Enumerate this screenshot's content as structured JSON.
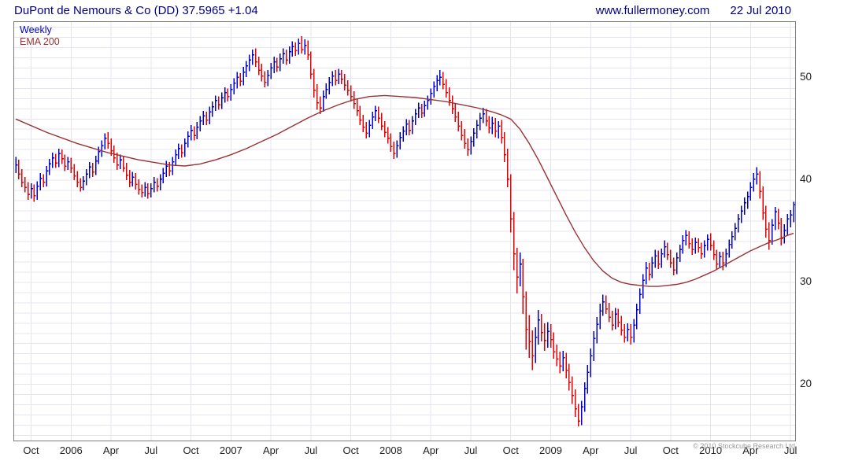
{
  "header": {
    "title": "DuPont de Nemours & Co (DD) 37.5965 +1.04",
    "site": "www.fullermoney.com",
    "date": "22 Jul 2010"
  },
  "legend": {
    "series1": "Weekly",
    "series2": "EMA 200"
  },
  "footer": {
    "copyright": "© 2010 Stockcube Research Ltd"
  },
  "colors": {
    "title": "#00007f",
    "up": "#0000cc",
    "down": "#e40000",
    "ema": "#993333",
    "grid": "#e8e3f0",
    "frame": "#7c7c7c",
    "axis_text": "#222222"
  },
  "chart_data": {
    "type": "bar",
    "subtype": "weekly-ohlc-hlc-bars",
    "title": "DuPont de Nemours & Co (DD)",
    "last_price": 37.5965,
    "change": "+1.04",
    "ylim": [
      14.5,
      55.5
    ],
    "y_ticks": [
      20,
      30,
      40,
      50
    ],
    "grid_step": 1,
    "legend_position": "top-left",
    "x_ticks": [
      {
        "label": "Oct",
        "week": 5
      },
      {
        "label": "2006",
        "week": 18
      },
      {
        "label": "Apr",
        "week": 31
      },
      {
        "label": "Jul",
        "week": 44
      },
      {
        "label": "Oct",
        "week": 57
      },
      {
        "label": "2007",
        "week": 70
      },
      {
        "label": "Apr",
        "week": 83
      },
      {
        "label": "Jul",
        "week": 96
      },
      {
        "label": "Oct",
        "week": 109
      },
      {
        "label": "2008",
        "week": 122
      },
      {
        "label": "Apr",
        "week": 135
      },
      {
        "label": "Jul",
        "week": 148
      },
      {
        "label": "Oct",
        "week": 161
      },
      {
        "label": "2009",
        "week": 174
      },
      {
        "label": "Apr",
        "week": 187
      },
      {
        "label": "Jul",
        "week": 200
      },
      {
        "label": "Oct",
        "week": 213
      },
      {
        "label": "2010",
        "week": 226
      },
      {
        "label": "Apr",
        "week": 239
      },
      {
        "label": "Jul",
        "week": 252
      }
    ],
    "bars": [
      [
        42.3,
        40.7,
        41.5
      ],
      [
        42.0,
        40.1,
        40.6
      ],
      [
        41.1,
        39.3,
        39.8
      ],
      [
        40.3,
        38.8,
        39.3
      ],
      [
        39.8,
        38.1,
        38.6
      ],
      [
        39.7,
        38.2,
        39.2
      ],
      [
        39.6,
        37.9,
        38.5
      ],
      [
        39.9,
        38.1,
        39.4
      ],
      [
        40.7,
        39.0,
        40.2
      ],
      [
        40.6,
        39.3,
        39.8
      ],
      [
        41.4,
        39.4,
        40.9
      ],
      [
        42.1,
        40.5,
        41.6
      ],
      [
        42.7,
        41.2,
        42.2
      ],
      [
        42.6,
        41.2,
        41.7
      ],
      [
        43.1,
        41.3,
        42.6
      ],
      [
        43.0,
        41.6,
        42.1
      ],
      [
        42.5,
        40.9,
        41.4
      ],
      [
        42.3,
        41.0,
        41.8
      ],
      [
        42.2,
        40.7,
        41.2
      ],
      [
        41.6,
        40.0,
        40.4
      ],
      [
        40.9,
        39.3,
        39.8
      ],
      [
        40.2,
        38.9,
        39.3
      ],
      [
        40.4,
        39.0,
        39.9
      ],
      [
        41.1,
        39.5,
        40.6
      ],
      [
        41.8,
        40.2,
        41.3
      ],
      [
        41.7,
        40.3,
        40.8
      ],
      [
        42.4,
        40.5,
        41.9
      ],
      [
        43.3,
        41.6,
        42.8
      ],
      [
        43.9,
        42.3,
        43.4
      ],
      [
        44.6,
        43.0,
        44.1
      ],
      [
        44.7,
        43.1,
        43.6
      ],
      [
        44.1,
        42.4,
        42.9
      ],
      [
        43.4,
        41.7,
        42.2
      ],
      [
        42.7,
        41.0,
        41.5
      ],
      [
        42.5,
        41.1,
        42.0
      ],
      [
        42.4,
        40.8,
        41.2
      ],
      [
        41.7,
        40.0,
        40.5
      ],
      [
        41.0,
        39.3,
        39.8
      ],
      [
        40.8,
        39.4,
        40.3
      ],
      [
        40.7,
        39.1,
        39.6
      ],
      [
        40.1,
        38.6,
        39.1
      ],
      [
        39.6,
        38.3,
        38.8
      ],
      [
        39.8,
        38.4,
        39.3
      ],
      [
        39.7,
        38.2,
        38.7
      ],
      [
        39.7,
        38.3,
        39.2
      ],
      [
        40.3,
        38.8,
        39.8
      ],
      [
        40.2,
        38.9,
        39.4
      ],
      [
        40.6,
        39.0,
        40.1
      ],
      [
        41.2,
        39.7,
        40.7
      ],
      [
        41.9,
        40.3,
        41.4
      ],
      [
        41.8,
        40.4,
        40.9
      ],
      [
        42.3,
        40.5,
        41.8
      ],
      [
        43.0,
        41.4,
        42.5
      ],
      [
        43.6,
        42.1,
        43.1
      ],
      [
        43.5,
        42.2,
        42.7
      ],
      [
        44.1,
        42.3,
        43.6
      ],
      [
        44.8,
        43.2,
        44.3
      ],
      [
        45.4,
        43.9,
        44.9
      ],
      [
        45.3,
        43.9,
        44.4
      ],
      [
        45.7,
        44.0,
        45.2
      ],
      [
        46.3,
        44.8,
        45.8
      ],
      [
        46.8,
        45.4,
        46.3
      ],
      [
        46.7,
        45.4,
        45.9
      ],
      [
        47.2,
        45.5,
        46.7
      ],
      [
        47.7,
        46.2,
        47.2
      ],
      [
        48.3,
        46.8,
        47.8
      ],
      [
        48.2,
        46.9,
        47.4
      ],
      [
        48.6,
        47.0,
        48.1
      ],
      [
        49.1,
        47.6,
        48.6
      ],
      [
        49.0,
        47.7,
        48.2
      ],
      [
        49.4,
        47.8,
        48.9
      ],
      [
        50.0,
        48.4,
        49.5
      ],
      [
        50.6,
        49.0,
        50.1
      ],
      [
        50.5,
        49.2,
        49.7
      ],
      [
        51.1,
        49.3,
        50.6
      ],
      [
        51.7,
        50.1,
        51.2
      ],
      [
        52.3,
        50.7,
        51.8
      ],
      [
        52.8,
        51.3,
        52.3
      ],
      [
        52.9,
        51.1,
        51.6
      ],
      [
        52.1,
        50.3,
        50.8
      ],
      [
        51.4,
        49.7,
        50.2
      ],
      [
        50.7,
        49.1,
        49.6
      ],
      [
        50.8,
        49.2,
        50.3
      ],
      [
        51.5,
        49.9,
        51.0
      ],
      [
        52.1,
        50.5,
        51.6
      ],
      [
        52.0,
        50.6,
        51.1
      ],
      [
        52.4,
        50.7,
        51.9
      ],
      [
        52.9,
        51.4,
        52.4
      ],
      [
        52.8,
        51.3,
        51.8
      ],
      [
        53.1,
        51.4,
        52.6
      ],
      [
        53.6,
        52.1,
        53.1
      ],
      [
        53.5,
        52.2,
        52.7
      ],
      [
        53.9,
        52.3,
        53.4
      ],
      [
        54.1,
        52.4,
        52.8
      ],
      [
        53.8,
        52.3,
        53.2
      ],
      [
        53.7,
        51.8,
        52.3
      ],
      [
        52.6,
        49.9,
        50.4
      ],
      [
        50.9,
        48.1,
        48.8
      ],
      [
        49.4,
        46.9,
        47.6
      ],
      [
        48.2,
        46.5,
        47.1
      ],
      [
        48.8,
        46.7,
        48.2
      ],
      [
        49.5,
        48.0,
        48.9
      ],
      [
        50.1,
        48.4,
        49.6
      ],
      [
        50.7,
        49.2,
        50.2
      ],
      [
        50.8,
        49.3,
        49.8
      ],
      [
        50.9,
        49.4,
        50.4
      ],
      [
        50.8,
        49.4,
        49.9
      ],
      [
        50.4,
        48.8,
        49.3
      ],
      [
        49.8,
        48.3,
        48.8
      ],
      [
        49.3,
        47.7,
        48.2
      ],
      [
        48.7,
        47.0,
        47.5
      ],
      [
        48.0,
        46.3,
        46.8
      ],
      [
        47.3,
        45.4,
        45.9
      ],
      [
        46.4,
        44.7,
        45.2
      ],
      [
        45.7,
        44.1,
        44.6
      ],
      [
        45.9,
        44.2,
        45.4
      ],
      [
        46.7,
        45.0,
        46.2
      ],
      [
        47.3,
        45.8,
        46.8
      ],
      [
        47.2,
        45.6,
        46.1
      ],
      [
        46.6,
        44.9,
        45.3
      ],
      [
        45.8,
        44.2,
        44.7
      ],
      [
        45.2,
        43.6,
        44.1
      ],
      [
        44.6,
        42.8,
        43.3
      ],
      [
        43.8,
        42.1,
        42.6
      ],
      [
        43.9,
        42.2,
        43.4
      ],
      [
        44.7,
        43.0,
        44.2
      ],
      [
        45.3,
        43.8,
        44.8
      ],
      [
        46.0,
        44.4,
        45.5
      ],
      [
        45.9,
        44.4,
        44.9
      ],
      [
        46.3,
        44.5,
        45.8
      ],
      [
        47.0,
        45.4,
        46.5
      ],
      [
        47.6,
        46.1,
        47.1
      ],
      [
        47.5,
        46.1,
        46.6
      ],
      [
        47.8,
        46.2,
        47.3
      ],
      [
        48.3,
        46.9,
        47.8
      ],
      [
        49.0,
        47.4,
        48.5
      ],
      [
        49.7,
        48.1,
        49.2
      ],
      [
        50.3,
        48.7,
        49.8
      ],
      [
        50.8,
        49.3,
        50.1
      ],
      [
        50.6,
        48.9,
        49.4
      ],
      [
        49.9,
        48.1,
        48.6
      ],
      [
        49.1,
        47.3,
        47.8
      ],
      [
        48.3,
        46.5,
        47.0
      ],
      [
        47.5,
        45.7,
        46.2
      ],
      [
        46.7,
        44.8,
        45.3
      ],
      [
        45.8,
        43.9,
        44.4
      ],
      [
        45.0,
        43.1,
        43.6
      ],
      [
        44.1,
        42.4,
        43.0
      ],
      [
        44.3,
        42.5,
        43.8
      ],
      [
        45.1,
        43.3,
        44.6
      ],
      [
        45.9,
        44.1,
        45.4
      ],
      [
        46.6,
        44.9,
        46.1
      ],
      [
        47.1,
        45.6,
        46.5
      ],
      [
        47.0,
        45.3,
        45.8
      ],
      [
        46.3,
        44.6,
        45.1
      ],
      [
        46.2,
        44.5,
        45.6
      ],
      [
        46.1,
        44.2,
        44.8
      ],
      [
        45.8,
        44.1,
        45.3
      ],
      [
        45.9,
        43.6,
        44.2
      ],
      [
        44.7,
        41.8,
        42.5
      ],
      [
        43.1,
        39.3,
        40.1
      ],
      [
        40.6,
        34.9,
        36.2
      ],
      [
        36.9,
        31.2,
        32.8
      ],
      [
        33.4,
        28.9,
        30.5
      ],
      [
        32.9,
        29.6,
        31.8
      ],
      [
        32.3,
        26.9,
        28.6
      ],
      [
        29.1,
        23.4,
        25.4
      ],
      [
        26.8,
        22.6,
        24.2
      ],
      [
        25.3,
        21.4,
        22.8
      ],
      [
        25.6,
        22.1,
        24.6
      ],
      [
        27.3,
        23.9,
        26.3
      ],
      [
        26.9,
        24.2,
        25.1
      ],
      [
        26.0,
        23.3,
        24.3
      ],
      [
        26.1,
        23.6,
        25.2
      ],
      [
        25.9,
        23.6,
        24.4
      ],
      [
        25.1,
        22.5,
        23.2
      ],
      [
        23.9,
        21.8,
        22.5
      ],
      [
        23.2,
        21.1,
        21.8
      ],
      [
        23.3,
        21.3,
        22.6
      ],
      [
        23.1,
        20.6,
        21.4
      ],
      [
        22.0,
        19.4,
        20.2
      ],
      [
        20.8,
        18.1,
        18.9
      ],
      [
        19.5,
        16.8,
        17.6
      ],
      [
        18.1,
        15.9,
        16.4
      ],
      [
        18.4,
        16.0,
        17.8
      ],
      [
        20.2,
        17.3,
        19.6
      ],
      [
        21.9,
        19.1,
        21.2
      ],
      [
        23.5,
        20.7,
        22.8
      ],
      [
        25.2,
        22.3,
        24.5
      ],
      [
        26.6,
        24.0,
        25.9
      ],
      [
        27.9,
        25.4,
        27.2
      ],
      [
        28.8,
        26.7,
        28.1
      ],
      [
        28.7,
        26.9,
        27.4
      ],
      [
        28.0,
        26.1,
        26.6
      ],
      [
        27.2,
        25.3,
        25.8
      ],
      [
        27.5,
        25.4,
        26.9
      ],
      [
        27.4,
        25.6,
        26.1
      ],
      [
        26.7,
        24.8,
        25.3
      ],
      [
        25.9,
        24.1,
        24.6
      ],
      [
        26.0,
        24.2,
        25.4
      ],
      [
        25.9,
        23.9,
        24.6
      ],
      [
        26.4,
        24.1,
        25.8
      ],
      [
        27.9,
        25.4,
        27.3
      ],
      [
        29.4,
        26.9,
        28.8
      ],
      [
        30.8,
        28.4,
        30.2
      ],
      [
        32.0,
        29.8,
        31.4
      ],
      [
        31.9,
        30.2,
        30.8
      ],
      [
        32.5,
        30.4,
        31.9
      ],
      [
        33.2,
        31.4,
        32.6
      ],
      [
        33.1,
        31.3,
        31.8
      ],
      [
        33.3,
        31.4,
        32.8
      ],
      [
        34.1,
        32.4,
        33.5
      ],
      [
        33.9,
        32.2,
        32.7
      ],
      [
        33.2,
        31.4,
        31.9
      ],
      [
        32.4,
        30.7,
        31.2
      ],
      [
        32.9,
        30.8,
        32.4
      ],
      [
        33.7,
        32.0,
        33.2
      ],
      [
        34.6,
        32.8,
        34.1
      ],
      [
        35.1,
        33.6,
        34.6
      ],
      [
        35.0,
        33.3,
        33.8
      ],
      [
        34.3,
        32.7,
        33.2
      ],
      [
        34.4,
        32.8,
        33.9
      ],
      [
        34.3,
        32.9,
        33.4
      ],
      [
        33.9,
        32.3,
        32.8
      ],
      [
        34.1,
        32.4,
        33.6
      ],
      [
        34.7,
        33.1,
        34.2
      ],
      [
        34.8,
        33.1,
        33.6
      ],
      [
        34.1,
        32.2,
        32.7
      ],
      [
        33.2,
        31.3,
        31.8
      ],
      [
        33.0,
        31.4,
        32.5
      ],
      [
        33.0,
        31.2,
        31.9
      ],
      [
        33.3,
        31.5,
        32.8
      ],
      [
        34.2,
        32.4,
        33.7
      ],
      [
        35.0,
        33.3,
        34.5
      ],
      [
        35.8,
        34.1,
        35.3
      ],
      [
        36.7,
        34.9,
        36.2
      ],
      [
        37.5,
        35.8,
        37.0
      ],
      [
        38.3,
        36.6,
        37.8
      ],
      [
        38.9,
        37.2,
        38.4
      ],
      [
        39.8,
        38.0,
        39.3
      ],
      [
        40.7,
        38.9,
        40.1
      ],
      [
        41.3,
        39.6,
        40.6
      ],
      [
        40.9,
        38.2,
        38.9
      ],
      [
        39.4,
        36.1,
        36.8
      ],
      [
        37.5,
        34.4,
        35.2
      ],
      [
        35.9,
        33.2,
        34.1
      ],
      [
        36.2,
        33.7,
        35.6
      ],
      [
        37.4,
        35.1,
        36.9
      ],
      [
        37.2,
        35.2,
        35.8
      ],
      [
        36.3,
        33.6,
        34.3
      ],
      [
        35.7,
        33.8,
        35.1
      ],
      [
        36.7,
        34.6,
        36.2
      ],
      [
        37.1,
        35.4,
        36.6
      ],
      [
        37.9,
        35.9,
        37.6
      ]
    ],
    "ema": {
      "label": "EMA 200",
      "points": [
        [
          0,
          46.0
        ],
        [
          10,
          44.7
        ],
        [
          20,
          43.6
        ],
        [
          30,
          42.7
        ],
        [
          40,
          42.0
        ],
        [
          50,
          41.5
        ],
        [
          55,
          41.4
        ],
        [
          60,
          41.6
        ],
        [
          65,
          42.0
        ],
        [
          70,
          42.5
        ],
        [
          75,
          43.1
        ],
        [
          80,
          43.8
        ],
        [
          85,
          44.5
        ],
        [
          90,
          45.3
        ],
        [
          95,
          46.1
        ],
        [
          100,
          46.8
        ],
        [
          105,
          47.4
        ],
        [
          110,
          47.9
        ],
        [
          115,
          48.2
        ],
        [
          120,
          48.3
        ],
        [
          125,
          48.2
        ],
        [
          130,
          48.1
        ],
        [
          135,
          47.9
        ],
        [
          140,
          47.7
        ],
        [
          145,
          47.4
        ],
        [
          150,
          47.1
        ],
        [
          155,
          46.7
        ],
        [
          158,
          46.4
        ],
        [
          161,
          46.0
        ],
        [
          164,
          45.0
        ],
        [
          167,
          43.6
        ],
        [
          170,
          42.0
        ],
        [
          173,
          40.2
        ],
        [
          176,
          38.4
        ],
        [
          179,
          36.6
        ],
        [
          182,
          34.9
        ],
        [
          185,
          33.4
        ],
        [
          188,
          32.1
        ],
        [
          191,
          31.1
        ],
        [
          194,
          30.4
        ],
        [
          197,
          30.0
        ],
        [
          200,
          29.8
        ],
        [
          203,
          29.7
        ],
        [
          206,
          29.6
        ],
        [
          209,
          29.6
        ],
        [
          212,
          29.7
        ],
        [
          215,
          29.8
        ],
        [
          218,
          30.0
        ],
        [
          221,
          30.3
        ],
        [
          224,
          30.7
        ],
        [
          227,
          31.1
        ],
        [
          230,
          31.6
        ],
        [
          233,
          32.1
        ],
        [
          236,
          32.6
        ],
        [
          239,
          33.1
        ],
        [
          242,
          33.5
        ],
        [
          245,
          33.9
        ],
        [
          248,
          34.2
        ],
        [
          251,
          34.6
        ],
        [
          253,
          34.8
        ]
      ]
    }
  }
}
